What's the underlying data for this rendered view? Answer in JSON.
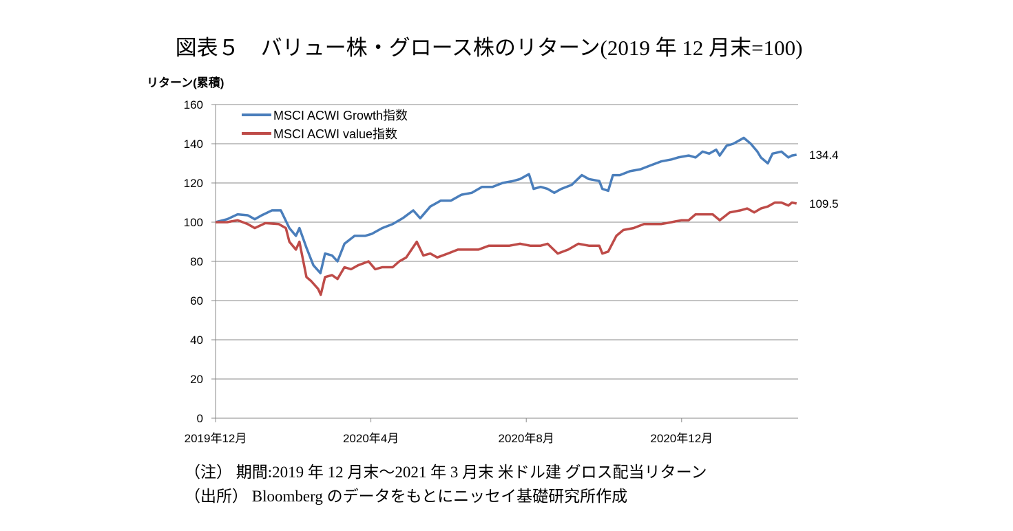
{
  "title": "図表５　バリュー株・グロース株のリターン(2019 年 12 月末=100)",
  "notes": [
    "（注） 期間:2019 年 12 月末～2021 年 3 月末 米ドル建 グロス配当リターン",
    "（出所） Bloomberg のデータをもとにニッセイ基礎研究所作成"
  ],
  "chart_data": {
    "type": "line",
    "title": "バリュー株・グロース株のリターン(2019 年 12 月末=100)",
    "ylabel": "リターン(累積)",
    "xlabel": "",
    "x_unit": "months since 2019年12月末",
    "xlim": [
      0,
      15
    ],
    "ylim": [
      0,
      160
    ],
    "yticks": [
      0,
      20,
      40,
      60,
      80,
      100,
      120,
      140,
      160
    ],
    "xticks": [
      {
        "x": 0,
        "label": "2019年12月"
      },
      {
        "x": 4,
        "label": "2020年4月"
      },
      {
        "x": 8,
        "label": "2020年8月"
      },
      {
        "x": 12,
        "label": "2020年12月"
      }
    ],
    "grid": true,
    "legend": "top-left",
    "series": [
      {
        "name": "MSCI ACWI Growth指数",
        "color": "#4a7ebb",
        "end_label": "134.4",
        "x": [
          0,
          0.3,
          0.57,
          0.83,
          1.01,
          1.19,
          1.45,
          1.68,
          1.9,
          2.07,
          2.16,
          2.34,
          2.52,
          2.7,
          2.82,
          3.0,
          3.14,
          3.32,
          3.58,
          3.85,
          4.02,
          4.29,
          4.56,
          4.82,
          5.09,
          5.27,
          5.53,
          5.8,
          6.06,
          6.33,
          6.6,
          6.86,
          7.13,
          7.39,
          7.66,
          7.84,
          8.07,
          8.19,
          8.37,
          8.55,
          8.72,
          8.9,
          9.17,
          9.43,
          9.61,
          9.88,
          9.96,
          10.11,
          10.23,
          10.41,
          10.67,
          10.94,
          11.21,
          11.47,
          11.74,
          11.91,
          12.18,
          12.36,
          12.54,
          12.71,
          12.89,
          12.98,
          13.16,
          13.33,
          13.51,
          13.6,
          13.78,
          13.95,
          14.04,
          14.22,
          14.34,
          14.57,
          14.75,
          14.84,
          14.96
        ],
        "y": [
          100,
          101.5,
          104,
          103.5,
          101.5,
          103.5,
          106,
          106,
          97,
          93,
          97,
          87,
          78,
          74,
          84,
          83,
          80,
          89,
          93,
          93,
          94,
          97,
          99,
          102,
          106,
          102,
          108,
          111,
          111,
          114,
          115,
          118,
          118,
          120,
          121,
          122,
          124.5,
          117,
          118,
          117,
          115,
          117,
          119,
          124,
          122,
          121,
          117,
          116,
          124,
          124,
          126,
          127,
          129,
          131,
          132,
          133,
          134,
          133,
          136,
          135,
          137,
          134,
          139,
          140,
          142,
          143,
          140,
          136,
          133,
          130,
          135,
          136,
          133,
          134,
          134.4
        ]
      },
      {
        "name": "MSCI ACWI value指数",
        "color": "#be4b48",
        "end_label": "109.5",
        "x": [
          0,
          0.3,
          0.57,
          0.83,
          1.01,
          1.28,
          1.63,
          1.81,
          1.9,
          2.07,
          2.16,
          2.34,
          2.46,
          2.64,
          2.71,
          2.82,
          3.0,
          3.14,
          3.32,
          3.49,
          3.67,
          3.94,
          4.11,
          4.29,
          4.56,
          4.73,
          4.91,
          5.18,
          5.35,
          5.53,
          5.71,
          5.98,
          6.24,
          6.51,
          6.77,
          7.04,
          7.3,
          7.57,
          7.84,
          8.1,
          8.37,
          8.55,
          8.81,
          9.08,
          9.34,
          9.61,
          9.88,
          9.96,
          10.11,
          10.32,
          10.5,
          10.76,
          11.03,
          11.21,
          11.47,
          11.74,
          12.0,
          12.18,
          12.36,
          12.62,
          12.8,
          12.98,
          13.24,
          13.51,
          13.69,
          13.87,
          14.04,
          14.22,
          14.4,
          14.57,
          14.75,
          14.84,
          14.96
        ],
        "y": [
          100,
          100,
          101,
          99,
          97,
          99.5,
          99,
          97,
          90,
          86,
          90,
          72,
          70,
          66,
          63,
          72,
          73,
          71,
          77,
          76,
          78,
          80,
          76,
          77,
          77,
          80,
          82,
          90,
          83,
          84,
          82,
          84,
          86,
          86,
          86,
          88,
          88,
          88,
          89,
          88,
          88,
          89,
          84,
          86,
          89,
          88,
          88,
          84,
          85,
          93,
          96,
          97,
          99,
          99,
          99,
          100,
          101,
          101,
          104,
          104,
          104,
          101,
          105,
          106,
          107,
          105,
          107,
          108,
          110,
          110,
          108.5,
          110,
          109.5
        ]
      }
    ]
  }
}
